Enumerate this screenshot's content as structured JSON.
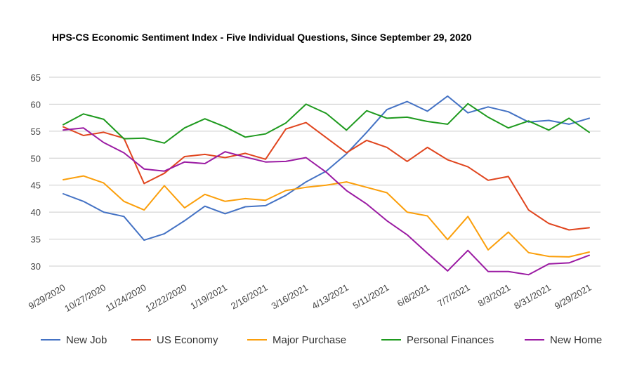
{
  "chart_data": {
    "type": "line",
    "title": "HPS-CS Economic Sentiment Index - Five Individual Questions, Since September 29, 2020",
    "xlabel": "",
    "ylabel": "",
    "ylim": [
      28,
      65
    ],
    "yticks": [
      30,
      35,
      40,
      45,
      50,
      55,
      60,
      65
    ],
    "grid": true,
    "legend_position": "bottom",
    "x_tick_labels": [
      "9/29/2020",
      "10/27/2020",
      "11/24/2020",
      "12/22/2020",
      "1/19/2021",
      "2/16/2021",
      "3/16/2021",
      "4/13/2021",
      "5/11/2021",
      "6/8/2021",
      "7/7/2021",
      "8/3/2021",
      "8/31/2021",
      "9/29/2021"
    ],
    "x_tick_positions": [
      0,
      2,
      4,
      6,
      8,
      10,
      12,
      14,
      16,
      18,
      20,
      22,
      24,
      26
    ],
    "series": [
      {
        "name": "New Job",
        "color": "#4472c4",
        "values": [
          43.4,
          42.0,
          40.0,
          39.2,
          34.8,
          36.0,
          38.4,
          41.1,
          39.7,
          41.0,
          41.2,
          43.1,
          45.6,
          47.6,
          50.8,
          54.8,
          59.0,
          60.5,
          58.7,
          61.5,
          58.4,
          59.5,
          58.6,
          56.7,
          57.0,
          56.3,
          57.4
        ]
      },
      {
        "name": "US Economy",
        "color": "#e0451e",
        "values": [
          55.8,
          54.2,
          54.8,
          53.7,
          45.3,
          47.2,
          50.3,
          50.7,
          50.1,
          50.9,
          49.8,
          55.4,
          56.6,
          53.8,
          51.0,
          53.3,
          52.0,
          49.4,
          52.0,
          49.7,
          48.4,
          45.9,
          46.6,
          40.4,
          37.9,
          36.7,
          37.1
        ]
      },
      {
        "name": "Major Purchase",
        "color": "#fb9f0b",
        "values": [
          46.0,
          46.7,
          45.4,
          42.0,
          40.4,
          44.9,
          40.8,
          43.3,
          42.0,
          42.5,
          42.2,
          44.0,
          44.6,
          45.0,
          45.6,
          44.6,
          43.6,
          40.0,
          39.3,
          34.9,
          39.2,
          33.0,
          36.3,
          32.5,
          31.8,
          31.7,
          32.6
        ]
      },
      {
        "name": "Personal Finances",
        "color": "#1e9a1e",
        "values": [
          56.2,
          58.2,
          57.2,
          53.6,
          53.7,
          52.8,
          55.6,
          57.3,
          55.8,
          53.9,
          54.5,
          56.5,
          60.0,
          58.3,
          55.2,
          58.8,
          57.4,
          57.6,
          56.8,
          56.3,
          60.1,
          57.6,
          55.6,
          56.9,
          55.2,
          57.4,
          54.8
        ]
      },
      {
        "name": "New Home",
        "color": "#9b1ba3",
        "values": [
          55.2,
          55.6,
          52.9,
          51.0,
          48.0,
          47.6,
          49.3,
          49.0,
          51.2,
          50.2,
          49.3,
          49.4,
          50.1,
          47.4,
          44.0,
          41.5,
          38.4,
          35.8,
          32.4,
          29.1,
          32.9,
          29.0,
          29.0,
          28.4,
          30.4,
          30.6,
          32.0
        ]
      }
    ]
  }
}
